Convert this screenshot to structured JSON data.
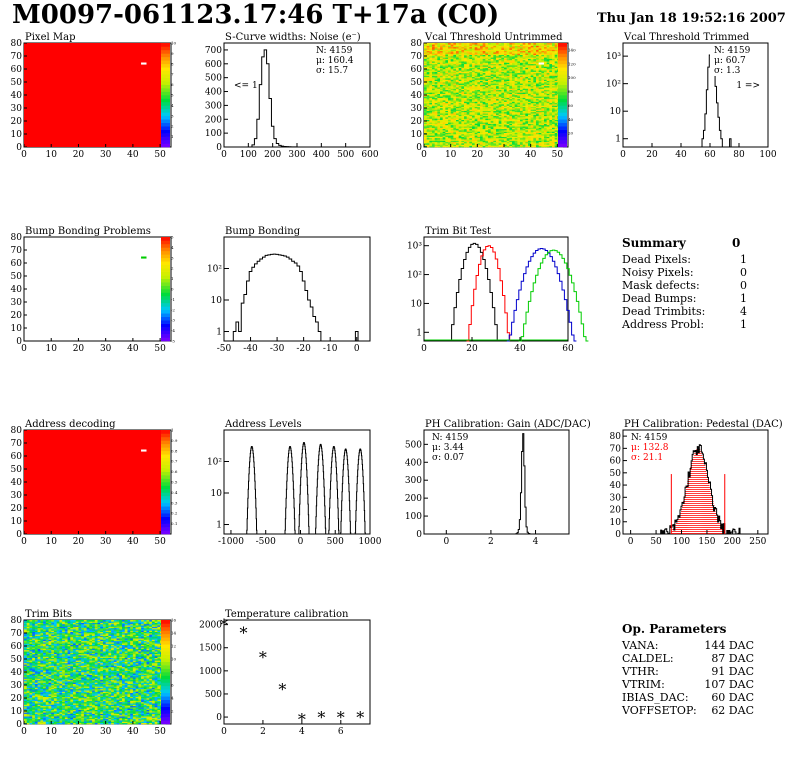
{
  "header": {
    "title": "M0097-061123.17:46 T+17a (C0)",
    "timestamp": "Thu Jan 18 19:52:16 2007"
  },
  "colors": {
    "red": "#ff0000",
    "black": "#000000",
    "blue": "#0000cc",
    "green": "#00cc00",
    "white": "#ffffff"
  },
  "chart_data": [
    {
      "id": "pixel-map",
      "type": "heatmap",
      "title": "Pixel Map",
      "x_range": [
        0,
        52
      ],
      "y_range": [
        0,
        80
      ],
      "x_ticks": [
        "0",
        "10",
        "20",
        "30",
        "40",
        "50"
      ],
      "y_ticks": [
        "0",
        "10",
        "20",
        "30",
        "40",
        "50",
        "60",
        "70",
        "80"
      ],
      "fill": "uniform red (all pixels alive)",
      "hot_pixels": [
        {
          "col": 43,
          "row": 64,
          "color": "white"
        }
      ],
      "z_ticks": [
        "1",
        "2",
        "3",
        "4",
        "5",
        "6",
        "7",
        "8",
        "9",
        "10"
      ],
      "z_range": [
        0,
        10
      ]
    },
    {
      "id": "scurve-noise",
      "type": "bar",
      "title": "S-Curve widths: Noise (e⁻)",
      "x_range": [
        0,
        600
      ],
      "x_ticks": [
        "0",
        "100",
        "200",
        "300",
        "400",
        "500",
        "600"
      ],
      "y_range": [
        0,
        750
      ],
      "y_ticks": [
        "0",
        "100",
        "200",
        "300",
        "400",
        "500",
        "600",
        "700"
      ],
      "stats": {
        "n": "N: 4159",
        "mu": "μ: 160.4",
        "sigma": "σ: 15.7"
      },
      "underflow_label": "<= 1",
      "bins_x": [
        110,
        120,
        130,
        140,
        150,
        160,
        170,
        180,
        190,
        200,
        210,
        220,
        230,
        240,
        250,
        260,
        270,
        280,
        290,
        300
      ],
      "bins_y": [
        0,
        15,
        60,
        200,
        450,
        650,
        700,
        600,
        350,
        150,
        60,
        25,
        12,
        6,
        4,
        3,
        2,
        1,
        1,
        0
      ]
    },
    {
      "id": "vcal-untrimmed",
      "type": "heatmap",
      "title": "Vcal Threshold Untrimmed",
      "x_range": [
        0,
        52
      ],
      "y_range": [
        0,
        80
      ],
      "x_ticks": [
        "0",
        "10",
        "20",
        "30",
        "40",
        "50"
      ],
      "y_ticks": [
        "0",
        "10",
        "20",
        "30",
        "40",
        "50",
        "60",
        "70",
        "80"
      ],
      "z_ticks": [
        "20",
        "40",
        "60",
        "80",
        "100",
        "120",
        "140"
      ],
      "z_range": [
        0,
        150
      ],
      "fill": "mostly yellow-green with orange speckles",
      "hot_pixels": [
        {
          "col": 43,
          "row": 64,
          "color": "white"
        }
      ]
    },
    {
      "id": "vcal-trimmed",
      "type": "bar",
      "title": "Vcal Threshold Trimmed",
      "log_y": true,
      "x_range": [
        0,
        100
      ],
      "x_ticks": [
        "0",
        "20",
        "40",
        "60",
        "80",
        "100"
      ],
      "y_range": [
        0.5,
        3000
      ],
      "y_ticks": [
        "1",
        "10",
        "10²",
        "10³"
      ],
      "stats": {
        "n": "N: 4159",
        "mu": "μ: 60.7",
        "sigma": "σ:  1.3"
      },
      "overflow_label": "1 =>",
      "bins_x": [
        55,
        56,
        57,
        58,
        59,
        60,
        61,
        62,
        63,
        64,
        65,
        66,
        67,
        68,
        69,
        70,
        71,
        72,
        73,
        74
      ],
      "bins_y": [
        1,
        2,
        8,
        60,
        400,
        1100,
        1300,
        800,
        300,
        80,
        20,
        6,
        2,
        1,
        0,
        0,
        0,
        0,
        0,
        1
      ]
    },
    {
      "id": "bump-problems",
      "type": "heatmap",
      "title": "Bump Bonding Problems",
      "x_range": [
        0,
        52
      ],
      "y_range": [
        0,
        80
      ],
      "x_ticks": [
        "0",
        "10",
        "20",
        "30",
        "40",
        "50"
      ],
      "y_ticks": [
        "0",
        "10",
        "20",
        "30",
        "40",
        "50",
        "60",
        "70",
        "80"
      ],
      "z_ticks": [
        "-5",
        "-4",
        "-3",
        "-2",
        "-1",
        "0",
        "1",
        "2",
        "3",
        "4",
        "5"
      ],
      "z_range": [
        -5,
        5
      ],
      "fill": "white",
      "hot_pixels": [
        {
          "col": 43,
          "row": 64,
          "color": "green"
        }
      ]
    },
    {
      "id": "bump-bonding",
      "type": "bar",
      "title": "Bump Bonding",
      "log_y": true,
      "x_range": [
        -50,
        5
      ],
      "x_ticks": [
        "-50",
        "-40",
        "-30",
        "-20",
        "-10",
        "0"
      ],
      "y_range": [
        0.5,
        1000
      ],
      "y_ticks": [
        "1",
        "10",
        "10²"
      ],
      "bins_x": [
        -48,
        -47,
        -46,
        -45,
        -44,
        -43,
        -42,
        -41,
        -40,
        -39,
        -38,
        -37,
        -36,
        -35,
        -34,
        -33,
        -32,
        -31,
        -30,
        -29,
        -28,
        -27,
        -26,
        -25,
        -24,
        -23,
        -22,
        -21,
        -20,
        -19,
        -18,
        -17,
        -16,
        -15,
        -14,
        -13,
        -12,
        -11,
        -10,
        -9,
        -8,
        -7,
        -6,
        -5,
        -4,
        -3,
        -2,
        -1,
        0,
        1
      ],
      "bins_y": [
        0,
        0,
        1,
        2,
        1,
        8,
        15,
        40,
        80,
        110,
        140,
        170,
        200,
        230,
        260,
        270,
        280,
        285,
        280,
        270,
        260,
        250,
        230,
        200,
        170,
        150,
        120,
        80,
        40,
        20,
        10,
        6,
        3,
        2,
        1,
        0,
        0,
        0,
        0,
        0,
        0,
        0,
        0,
        0,
        0,
        0,
        0,
        0,
        1,
        0
      ]
    },
    {
      "id": "trim-bit-test",
      "type": "line",
      "title": "Trim Bit Test",
      "log_y": true,
      "x_range": [
        0,
        60
      ],
      "x_ticks": [
        "0",
        "20",
        "40",
        "60"
      ],
      "y_range": [
        0.5,
        2000
      ],
      "y_ticks": [
        "1",
        "10",
        "10²",
        "10³"
      ],
      "series": [
        {
          "color": "black",
          "peaks": [
            {
              "center": 21,
              "width": 2.5,
              "height": 1200
            }
          ]
        },
        {
          "color": "red",
          "peaks": [
            {
              "center": 27,
              "width": 2.2,
              "height": 1000
            }
          ]
        },
        {
          "color": "blue",
          "peaks": [
            {
              "center": 49,
              "width": 3.5,
              "height": 800
            }
          ]
        },
        {
          "color": "green",
          "peaks": [
            {
              "center": 54,
              "width": 3.5,
              "height": 700
            }
          ]
        }
      ]
    },
    {
      "id": "address-decoding",
      "type": "heatmap",
      "title": "Address decoding",
      "x_range": [
        0,
        52
      ],
      "y_range": [
        0,
        80
      ],
      "x_ticks": [
        "0",
        "10",
        "20",
        "30",
        "40",
        "50"
      ],
      "y_ticks": [
        "0",
        "10",
        "20",
        "30",
        "40",
        "50",
        "60",
        "70",
        "80"
      ],
      "z_ticks": [
        "0.1",
        "0.2",
        "0.3",
        "0.4",
        "0.5",
        "0.6",
        "0.7",
        "0.8",
        "0.9",
        "1"
      ],
      "z_range": [
        0,
        1
      ],
      "fill": "uniform red",
      "hot_pixels": [
        {
          "col": 43,
          "row": 64,
          "color": "white"
        }
      ]
    },
    {
      "id": "address-levels",
      "type": "line",
      "title": "Address Levels",
      "log_y": true,
      "x_range": [
        -1100,
        1000
      ],
      "x_ticks": [
        "-1000",
        "-500",
        "0",
        "500",
        "1000"
      ],
      "y_range": [
        0.5,
        1000
      ],
      "y_ticks": [
        "1",
        "10",
        "10²"
      ],
      "peaks": [
        {
          "center": -700,
          "width": 20,
          "height": 300
        },
        {
          "center": -150,
          "width": 20,
          "height": 300
        },
        {
          "center": 50,
          "width": 20,
          "height": 400
        },
        {
          "center": 290,
          "width": 20,
          "height": 350
        },
        {
          "center": 480,
          "width": 20,
          "height": 300
        },
        {
          "center": 650,
          "width": 20,
          "height": 250
        },
        {
          "center": 860,
          "width": 20,
          "height": 250
        }
      ]
    },
    {
      "id": "ph-gain",
      "type": "bar",
      "title": "PH Calibration: Gain (ADC/DAC)",
      "x_range": [
        -1,
        5.5
      ],
      "x_ticks": [
        "0",
        "2",
        "4"
      ],
      "y_range": [
        0,
        580
      ],
      "y_ticks": [
        "0",
        "100",
        "200",
        "300",
        "400",
        "500"
      ],
      "stats": {
        "n": "N: 4159",
        "mu": "μ: 3.44",
        "sigma": "σ: 0.07"
      },
      "bins_x": [
        3.1,
        3.15,
        3.2,
        3.25,
        3.3,
        3.35,
        3.4,
        3.45,
        3.5,
        3.55,
        3.6,
        3.65,
        3.7,
        3.75,
        3.8
      ],
      "bins_y": [
        0,
        2,
        8,
        25,
        80,
        230,
        460,
        560,
        380,
        150,
        40,
        10,
        3,
        1,
        0
      ]
    },
    {
      "id": "ph-pedestal",
      "type": "bar",
      "title": "PH Calibration: Pedestal (DAC)",
      "x_range": [
        -15,
        270
      ],
      "x_ticks": [
        "0",
        "50",
        "100",
        "150",
        "200",
        "250"
      ],
      "y_range": [
        0,
        85
      ],
      "y_ticks": [
        "0",
        "10",
        "20",
        "30",
        "40",
        "50",
        "60",
        "70",
        "80"
      ],
      "stats": {
        "n": "N: 4159",
        "mu": "μ: 132.8",
        "sigma": "σ: 21.1"
      },
      "fit_range": [
        80,
        185
      ],
      "gaussian": {
        "mean": 132.8,
        "sigma": 21.1,
        "peak": 70
      }
    },
    {
      "id": "trim-bits",
      "type": "heatmap",
      "title": "Trim Bits",
      "x_range": [
        0,
        52
      ],
      "y_range": [
        0,
        80
      ],
      "x_ticks": [
        "0",
        "10",
        "20",
        "30",
        "40",
        "50"
      ],
      "y_ticks": [
        "0",
        "10",
        "20",
        "30",
        "40",
        "50",
        "60",
        "70",
        "80"
      ],
      "z_ticks": [
        "2",
        "4",
        "6",
        "8",
        "10",
        "12",
        "14",
        "16"
      ],
      "z_range": [
        0,
        16
      ],
      "fill": "mostly green with cyan/yellow speckles"
    },
    {
      "id": "temperature-calibration",
      "type": "scatter",
      "title": "Temperature calibration",
      "x_range": [
        0,
        7.5
      ],
      "x_ticks": [
        "0",
        "2",
        "4",
        "6"
      ],
      "y_range": [
        -150,
        2100
      ],
      "y_ticks": [
        "0",
        "500",
        "1000",
        "1500",
        "2000"
      ],
      "x": [
        0,
        1,
        2,
        3,
        4,
        5,
        6,
        7
      ],
      "y": [
        2000,
        1830,
        1300,
        610,
        -40,
        0,
        0,
        0
      ]
    }
  ],
  "summary": {
    "title": "Summary",
    "value": "0",
    "rows": [
      {
        "label": "Dead Pixels:",
        "value": "1"
      },
      {
        "label": "Noisy Pixels:",
        "value": "0"
      },
      {
        "label": "Mask defects:",
        "value": "0"
      },
      {
        "label": "Dead Bumps:",
        "value": "1"
      },
      {
        "label": "Dead Trimbits:",
        "value": "4"
      },
      {
        "label": "Address Probl:",
        "value": "1"
      }
    ]
  },
  "op_parameters": {
    "title": "Op. Parameters",
    "rows": [
      {
        "label": "VANA:",
        "value": "144 DAC"
      },
      {
        "label": "CALDEL:",
        "value": "87 DAC"
      },
      {
        "label": "VTHR:",
        "value": "91 DAC"
      },
      {
        "label": "VTRIM:",
        "value": "107 DAC"
      },
      {
        "label": "IBIAS_DAC:",
        "value": "60 DAC"
      },
      {
        "label": "VOFFSETOP:",
        "value": "62 DAC"
      }
    ]
  }
}
